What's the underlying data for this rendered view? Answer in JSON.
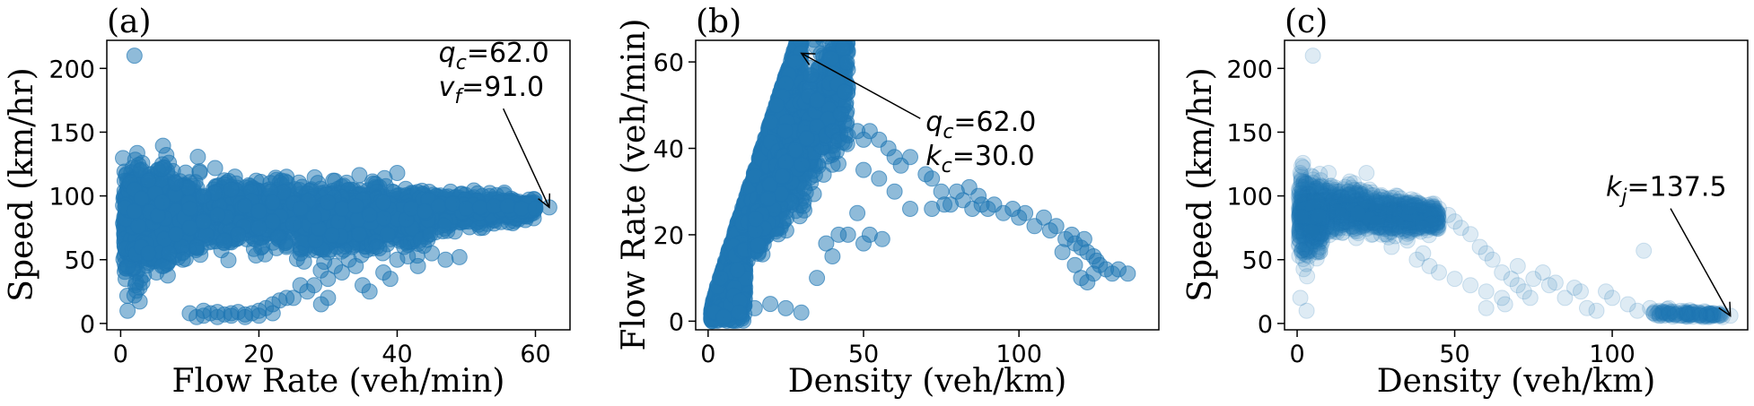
{
  "chart_data": [
    {
      "type": "scatter",
      "panel_label": "(a)",
      "xlabel": "Flow Rate (veh/min)",
      "ylabel": "Speed (km/hr)",
      "xlim": [
        -2,
        65
      ],
      "ylim": [
        -5,
        222
      ],
      "xticks": [
        0,
        20,
        40,
        60
      ],
      "yticks": [
        0,
        50,
        100,
        150,
        200
      ],
      "color": "#1f77b4",
      "alpha": 0.5,
      "annotation": {
        "lines": [
          {
            "sym": "q",
            "sub": "c",
            "val": "=62.0"
          },
          {
            "sym": "v",
            "sub": "f",
            "val": "=91.0"
          }
        ],
        "point": [
          62.0,
          91.0
        ],
        "text_pos": [
          46,
          205
        ]
      },
      "points": [
        [
          2,
          210
        ],
        [
          1,
          10
        ],
        [
          2,
          22
        ],
        [
          2,
          105
        ],
        [
          3,
          98
        ],
        [
          4,
          112
        ],
        [
          5,
          102
        ],
        [
          2,
          88
        ],
        [
          3,
          60
        ],
        [
          4,
          55
        ],
        [
          6,
          95
        ],
        [
          8,
          110
        ],
        [
          10,
          90
        ],
        [
          12,
          100
        ],
        [
          14,
          85
        ],
        [
          16,
          105
        ],
        [
          18,
          92
        ],
        [
          20,
          88
        ],
        [
          22,
          95
        ],
        [
          24,
          115
        ],
        [
          26,
          90
        ],
        [
          28,
          84
        ],
        [
          30,
          95
        ],
        [
          32,
          90
        ],
        [
          34,
          92
        ],
        [
          36,
          85
        ],
        [
          38,
          95
        ],
        [
          40,
          118
        ],
        [
          42,
          90
        ],
        [
          44,
          88
        ],
        [
          46,
          92
        ],
        [
          48,
          94
        ],
        [
          50,
          90
        ],
        [
          52,
          91
        ],
        [
          54,
          92
        ],
        [
          56,
          92
        ],
        [
          58,
          90
        ],
        [
          60,
          90
        ],
        [
          62,
          91
        ],
        [
          7,
          55
        ],
        [
          9,
          50
        ],
        [
          11,
          60
        ],
        [
          6,
          45
        ],
        [
          8,
          70
        ],
        [
          10,
          75
        ],
        [
          12,
          80
        ],
        [
          15,
          65
        ],
        [
          17,
          70
        ],
        [
          20,
          75
        ],
        [
          22,
          80
        ],
        [
          25,
          78
        ],
        [
          24,
          60
        ],
        [
          26,
          55
        ],
        [
          28,
          30
        ],
        [
          30,
          35
        ],
        [
          30,
          20
        ],
        [
          32,
          40
        ],
        [
          33,
          50
        ],
        [
          34,
          45
        ],
        [
          35,
          30
        ],
        [
          36,
          25
        ],
        [
          38,
          40
        ],
        [
          39,
          35
        ],
        [
          40,
          50
        ],
        [
          41,
          60
        ],
        [
          43,
          45
        ],
        [
          45,
          55
        ],
        [
          47,
          50
        ],
        [
          49,
          52
        ],
        [
          26,
          30
        ],
        [
          27,
          25
        ],
        [
          29,
          15
        ],
        [
          31,
          45
        ],
        [
          37,
          60
        ],
        [
          10,
          8
        ],
        [
          11,
          5
        ],
        [
          12,
          6
        ],
        [
          13,
          8
        ],
        [
          14,
          5
        ],
        [
          15,
          7
        ],
        [
          16,
          6
        ],
        [
          17,
          9
        ],
        [
          18,
          5
        ],
        [
          19,
          8
        ],
        [
          20,
          10
        ],
        [
          21,
          12
        ],
        [
          22,
          15
        ],
        [
          23,
          18
        ],
        [
          24,
          20
        ],
        [
          25,
          20
        ],
        [
          12,
          10
        ],
        [
          14,
          9
        ],
        [
          16,
          8
        ],
        [
          18,
          7
        ],
        [
          20,
          6
        ],
        [
          22,
          8
        ]
      ],
      "bands": [
        {
          "x0": 0.3,
          "x1": 60,
          "yc0": 82,
          "yc1": 90,
          "h0": 50,
          "h1": 10,
          "n": 2200
        },
        {
          "x0": 0.5,
          "x1": 10,
          "yc0": 80,
          "yc1": 85,
          "h0": 60,
          "h1": 35,
          "n": 900
        },
        {
          "x0": 26,
          "x1": 45,
          "yc0": 72,
          "yc1": 82,
          "h0": 30,
          "h1": 25,
          "n": 600
        }
      ]
    },
    {
      "type": "scatter",
      "panel_label": "(b)",
      "xlabel": "Density (veh/km)",
      "ylabel": "Flow Rate (veh/min)",
      "xlim": [
        -4,
        145
      ],
      "ylim": [
        -2,
        65
      ],
      "xticks": [
        0,
        50,
        100
      ],
      "yticks": [
        0,
        20,
        40,
        60
      ],
      "color": "#1f77b4",
      "alpha": 0.5,
      "annotation": {
        "lines": [
          {
            "sym": "q",
            "sub": "c",
            "val": "=62.0"
          },
          {
            "sym": "k",
            "sub": "c",
            "val": "=30.0"
          }
        ],
        "point": [
          30.0,
          62.0
        ],
        "text_pos": [
          70,
          44
        ]
      },
      "points": [
        [
          30,
          62
        ],
        [
          28,
          60
        ],
        [
          26,
          57
        ],
        [
          25,
          55
        ],
        [
          24,
          52
        ],
        [
          22,
          50
        ],
        [
          35,
          45
        ],
        [
          38,
          43
        ],
        [
          40,
          44
        ],
        [
          42,
          42
        ],
        [
          45,
          43
        ],
        [
          48,
          44
        ],
        [
          50,
          42
        ],
        [
          52,
          44
        ],
        [
          55,
          42
        ],
        [
          58,
          40
        ],
        [
          60,
          38
        ],
        [
          62,
          36
        ],
        [
          65,
          38
        ],
        [
          70,
          34
        ],
        [
          72,
          33
        ],
        [
          75,
          30
        ],
        [
          76,
          27
        ],
        [
          80,
          30
        ],
        [
          82,
          28
        ],
        [
          85,
          26
        ],
        [
          87,
          29
        ],
        [
          88,
          27
        ],
        [
          90,
          26
        ],
        [
          92,
          27
        ],
        [
          95,
          25
        ],
        [
          98,
          26
        ],
        [
          100,
          24
        ],
        [
          102,
          25
        ],
        [
          105,
          22
        ],
        [
          108,
          24
        ],
        [
          110,
          21
        ],
        [
          112,
          22
        ],
        [
          115,
          19
        ],
        [
          117,
          20
        ],
        [
          118,
          18
        ],
        [
          120,
          17
        ],
        [
          121,
          19
        ],
        [
          122,
          16
        ],
        [
          124,
          15
        ],
        [
          125,
          14
        ],
        [
          126,
          13
        ],
        [
          128,
          12
        ],
        [
          130,
          11
        ],
        [
          132,
          12
        ],
        [
          135,
          11
        ],
        [
          120,
          10
        ],
        [
          122,
          9
        ],
        [
          124,
          11
        ],
        [
          118,
          13
        ],
        [
          114,
          16
        ],
        [
          65,
          26
        ],
        [
          60,
          30
        ],
        [
          55,
          33
        ],
        [
          50,
          35
        ],
        [
          48,
          25
        ],
        [
          45,
          20
        ],
        [
          42,
          20
        ],
        [
          38,
          18
        ],
        [
          40,
          15
        ],
        [
          50,
          18
        ],
        [
          52,
          20
        ],
        [
          56,
          19
        ],
        [
          35,
          10
        ],
        [
          30,
          2
        ],
        [
          25,
          3
        ],
        [
          20,
          4
        ],
        [
          15,
          3
        ],
        [
          10,
          2
        ],
        [
          5,
          1
        ],
        [
          3,
          8
        ],
        [
          4,
          10
        ],
        [
          72,
          26
        ],
        [
          78,
          27
        ],
        [
          84,
          31
        ]
      ],
      "bands": [
        {
          "x0": 1,
          "x1": 30,
          "slope": 1.95,
          "spread": 0.35,
          "n": 2600
        },
        {
          "x0": 1,
          "x1": 12,
          "slope": 0.8,
          "spread": 0.9,
          "n": 700
        },
        {
          "x0": 15,
          "x1": 45,
          "slope": 1.35,
          "spread": 0.28,
          "n": 1100
        }
      ]
    },
    {
      "type": "scatter",
      "panel_label": "(c)",
      "xlabel": "Density (veh/km)",
      "ylabel": "Speed (km/hr)",
      "xlim": [
        -4,
        143
      ],
      "ylim": [
        -5,
        222
      ],
      "xticks": [
        0,
        50,
        100
      ],
      "yticks": [
        0,
        50,
        100,
        150,
        200
      ],
      "color": "#1f77b4",
      "alpha": 0.15,
      "annotation": {
        "lines": [
          {
            "sym": "k",
            "sub": "j",
            "val": "=137.5"
          }
        ],
        "point": [
          137.5,
          6.0
        ],
        "text_pos": [
          98,
          100
        ]
      },
      "points": [
        [
          5,
          210
        ],
        [
          1,
          20
        ],
        [
          3,
          10
        ],
        [
          1,
          118
        ],
        [
          2,
          110
        ],
        [
          5,
          115
        ],
        [
          10,
          118
        ],
        [
          18,
          110
        ],
        [
          22,
          118
        ],
        [
          45,
          90
        ],
        [
          48,
          85
        ],
        [
          50,
          80
        ],
        [
          52,
          75
        ],
        [
          55,
          70
        ],
        [
          58,
          60
        ],
        [
          60,
          55
        ],
        [
          62,
          50
        ],
        [
          65,
          40
        ],
        [
          68,
          35
        ],
        [
          70,
          30
        ],
        [
          72,
          25
        ],
        [
          74,
          20
        ],
        [
          75,
          35
        ],
        [
          78,
          40
        ],
        [
          80,
          30
        ],
        [
          82,
          32
        ],
        [
          85,
          20
        ],
        [
          88,
          28
        ],
        [
          90,
          25
        ],
        [
          92,
          12
        ],
        [
          95,
          10
        ],
        [
          98,
          25
        ],
        [
          100,
          20
        ],
        [
          105,
          15
        ],
        [
          108,
          10
        ],
        [
          110,
          57
        ],
        [
          112,
          12
        ],
        [
          115,
          10
        ],
        [
          118,
          8
        ],
        [
          120,
          7
        ],
        [
          122,
          6
        ],
        [
          124,
          8
        ],
        [
          126,
          7
        ],
        [
          128,
          6
        ],
        [
          130,
          7
        ],
        [
          132,
          6
        ],
        [
          135,
          5
        ],
        [
          137.5,
          6
        ],
        [
          118,
          12
        ],
        [
          120,
          9
        ],
        [
          40,
          55
        ],
        [
          38,
          50
        ],
        [
          42,
          45
        ],
        [
          45,
          40
        ],
        [
          50,
          35
        ],
        [
          55,
          30
        ],
        [
          60,
          25
        ],
        [
          65,
          20
        ],
        [
          66,
          15
        ],
        [
          70,
          45
        ],
        [
          30,
          60
        ],
        [
          28,
          70
        ],
        [
          35,
          65
        ],
        [
          40,
          75
        ],
        [
          60,
          12
        ]
      ],
      "bands": [
        {
          "x0": 0.5,
          "x1": 45,
          "yc0": 92,
          "yc1": 82,
          "h0": 30,
          "h1": 12,
          "n": 1600
        },
        {
          "x0": 0.5,
          "x1": 8,
          "yc0": 80,
          "yc1": 75,
          "h0": 40,
          "h1": 25,
          "n": 400
        },
        {
          "x0": 113,
          "x1": 135,
          "yc0": 8,
          "yc1": 7,
          "h0": 4,
          "h1": 3,
          "n": 120
        }
      ]
    }
  ]
}
